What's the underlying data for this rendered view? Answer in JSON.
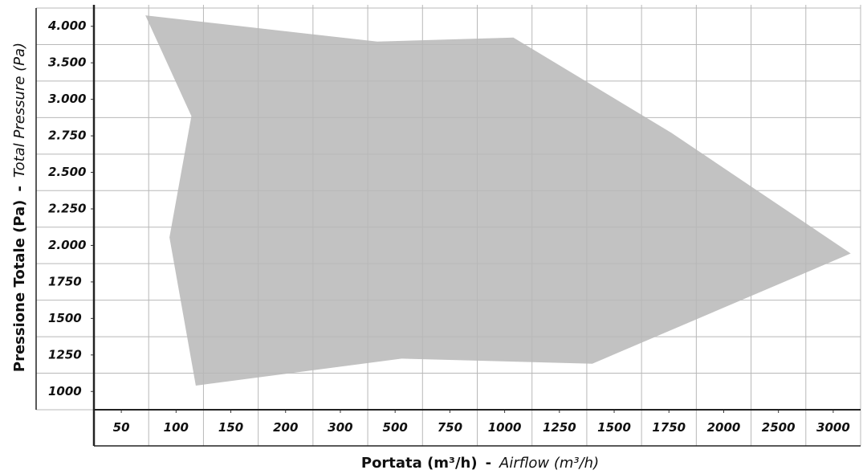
{
  "chart_data": {
    "type": "area",
    "x_title": {
      "main": "Portata (m³/h)",
      "sep": "-",
      "alt": "Airflow (m³/h)"
    },
    "y_title": {
      "main": "Pressione Totale (Pa)",
      "sep": "-",
      "alt": "Total Pressure (Pa)"
    },
    "xticks": [
      50,
      100,
      150,
      200,
      300,
      500,
      750,
      1000,
      1250,
      1500,
      1750,
      2000,
      2500,
      3000
    ],
    "yticks": [
      {
        "value": 4000,
        "label": "4.000"
      },
      {
        "value": 3500,
        "label": "3.500"
      },
      {
        "value": 3000,
        "label": "3.000"
      },
      {
        "value": 2750,
        "label": "2.750"
      },
      {
        "value": 2500,
        "label": "2.500"
      },
      {
        "value": 2250,
        "label": "2.250"
      },
      {
        "value": 2000,
        "label": "2.000"
      },
      1750,
      1500,
      1250,
      1000
    ],
    "x": [
      72,
      435,
      1040,
      1760,
      3160,
      1400,
      530,
      118,
      94,
      114
    ],
    "values": [
      4150,
      3790,
      3845,
      2772,
      1945,
      1190,
      1225,
      1040,
      2055,
      2885
    ],
    "color": "#c2c2c2",
    "grid": true
  }
}
